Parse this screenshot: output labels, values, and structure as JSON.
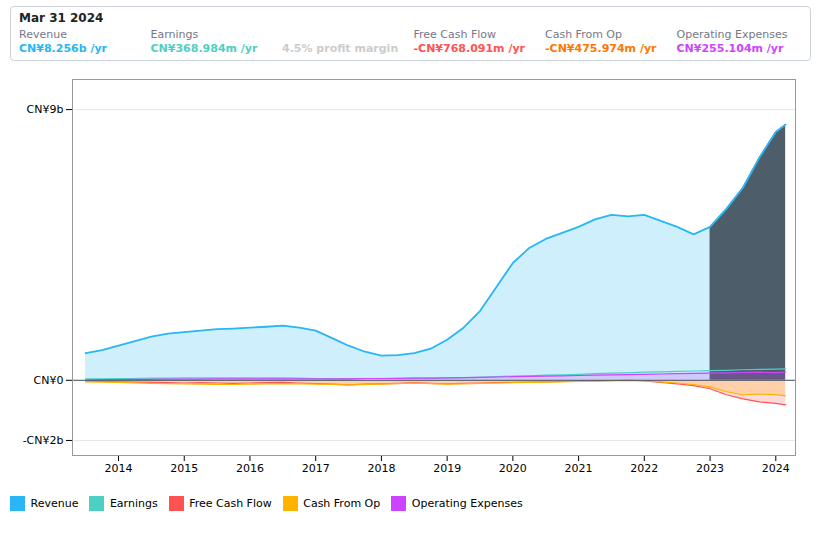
{
  "chart_data": {
    "type": "area",
    "x": [
      2013.5,
      2013.75,
      2014.0,
      2014.25,
      2014.5,
      2014.75,
      2015.0,
      2015.25,
      2015.5,
      2015.75,
      2016.0,
      2016.25,
      2016.5,
      2016.75,
      2017.0,
      2017.25,
      2017.5,
      2017.75,
      2018.0,
      2018.25,
      2018.5,
      2018.75,
      2019.0,
      2019.25,
      2019.5,
      2019.75,
      2020.0,
      2020.25,
      2020.5,
      2020.75,
      2021.0,
      2021.25,
      2021.5,
      2021.75,
      2022.0,
      2022.25,
      2022.5,
      2022.75,
      2023.0,
      2023.25,
      2023.5,
      2023.75,
      2024.0,
      2024.15
    ],
    "xlim": [
      2013.3,
      2024.3
    ],
    "xticks": [
      2014,
      2015,
      2016,
      2017,
      2018,
      2019,
      2020,
      2021,
      2022,
      2023,
      2024
    ],
    "ylim": [
      -2.5,
      10.0
    ],
    "yticks": [
      {
        "value": -2,
        "label": "-CN¥2b"
      },
      {
        "value": 0,
        "label": "CN¥0"
      },
      {
        "value": 9,
        "label": "CN¥9b"
      }
    ],
    "grid": true,
    "legend": "bottom",
    "highlight_x_start": 2023.0,
    "highlight_color": "#060e1a",
    "series": [
      {
        "name": "Revenue",
        "type": "area",
        "color": "#29b6f6",
        "values": [
          0.9,
          1.0,
          1.15,
          1.3,
          1.45,
          1.55,
          1.6,
          1.65,
          1.7,
          1.72,
          1.75,
          1.78,
          1.82,
          1.75,
          1.65,
          1.4,
          1.15,
          0.95,
          0.82,
          0.84,
          0.9,
          1.05,
          1.35,
          1.75,
          2.3,
          3.1,
          3.9,
          4.4,
          4.7,
          4.9,
          5.1,
          5.35,
          5.5,
          5.45,
          5.5,
          5.3,
          5.1,
          4.85,
          5.1,
          5.7,
          6.4,
          7.4,
          8.256,
          8.5
        ]
      },
      {
        "name": "Earnings",
        "type": "line",
        "color": "#4dd0c4",
        "values": [
          0.05,
          0.05,
          0.06,
          0.06,
          0.07,
          0.07,
          0.08,
          0.08,
          0.08,
          0.08,
          0.08,
          0.08,
          0.08,
          0.07,
          0.06,
          0.05,
          0.05,
          0.06,
          0.06,
          0.07,
          0.07,
          0.07,
          0.08,
          0.09,
          0.1,
          0.12,
          0.14,
          0.15,
          0.17,
          0.18,
          0.2,
          0.22,
          0.24,
          0.25,
          0.27,
          0.28,
          0.3,
          0.31,
          0.32,
          0.33,
          0.35,
          0.36,
          0.369,
          0.38
        ]
      },
      {
        "name": "Free Cash Flow",
        "type": "area",
        "color": "#ff5252",
        "values": [
          -0.03,
          -0.04,
          -0.05,
          -0.06,
          -0.07,
          -0.08,
          -0.09,
          -0.08,
          -0.09,
          -0.1,
          -0.09,
          -0.08,
          -0.07,
          -0.09,
          -0.11,
          -0.13,
          -0.15,
          -0.13,
          -0.12,
          -0.1,
          -0.08,
          -0.1,
          -0.12,
          -0.1,
          -0.09,
          -0.08,
          -0.07,
          -0.06,
          -0.05,
          -0.04,
          -0.03,
          -0.02,
          -0.01,
          0.0,
          -0.02,
          -0.07,
          -0.12,
          -0.18,
          -0.28,
          -0.48,
          -0.62,
          -0.72,
          -0.768,
          -0.82
        ]
      },
      {
        "name": "Cash From Op",
        "type": "area",
        "color": "#ffb300",
        "values": [
          -0.05,
          -0.06,
          -0.07,
          -0.09,
          -0.1,
          -0.11,
          -0.12,
          -0.13,
          -0.14,
          -0.14,
          -0.13,
          -0.12,
          -0.11,
          -0.12,
          -0.13,
          -0.14,
          -0.15,
          -0.14,
          -0.13,
          -0.11,
          -0.09,
          -0.11,
          -0.13,
          -0.12,
          -0.1,
          -0.09,
          -0.08,
          -0.07,
          -0.06,
          -0.05,
          -0.04,
          -0.03,
          -0.01,
          0.01,
          -0.01,
          -0.05,
          -0.09,
          -0.14,
          -0.22,
          -0.38,
          -0.48,
          -0.46,
          -0.476,
          -0.52
        ]
      },
      {
        "name": "Operating Expenses",
        "type": "area",
        "color": "#cc44ff",
        "values": [
          0.01,
          0.02,
          0.02,
          0.03,
          0.03,
          0.04,
          0.04,
          0.04,
          0.05,
          0.05,
          0.05,
          0.05,
          0.05,
          0.05,
          0.05,
          0.05,
          0.05,
          0.06,
          0.06,
          0.06,
          0.07,
          0.07,
          0.08,
          0.09,
          0.1,
          0.11,
          0.12,
          0.13,
          0.14,
          0.15,
          0.16,
          0.17,
          0.18,
          0.19,
          0.2,
          0.21,
          0.22,
          0.23,
          0.24,
          0.25,
          0.26,
          0.27,
          0.255,
          0.27
        ]
      }
    ],
    "annotations": {
      "title": "Mar 31 2024",
      "rows": [
        {
          "label": "Revenue",
          "text": "CN¥8.256b /yr",
          "color": "#29b6f6"
        },
        {
          "label": "Earnings",
          "text": "CN¥368.984m /yr",
          "color": "#4dd0c4"
        },
        {
          "text": "4.5% profit margin",
          "color": "#cccccc"
        },
        {
          "label": "Free Cash Flow",
          "text": "-CN¥768.091m /yr",
          "color": "#ff5252"
        },
        {
          "label": "Cash From Op",
          "text": "-CN¥475.974m /yr",
          "color": "#ff7700"
        },
        {
          "label": "Operating Expenses",
          "text": "CN¥255.104m /yr",
          "color": "#cc44ff"
        }
      ]
    }
  }
}
